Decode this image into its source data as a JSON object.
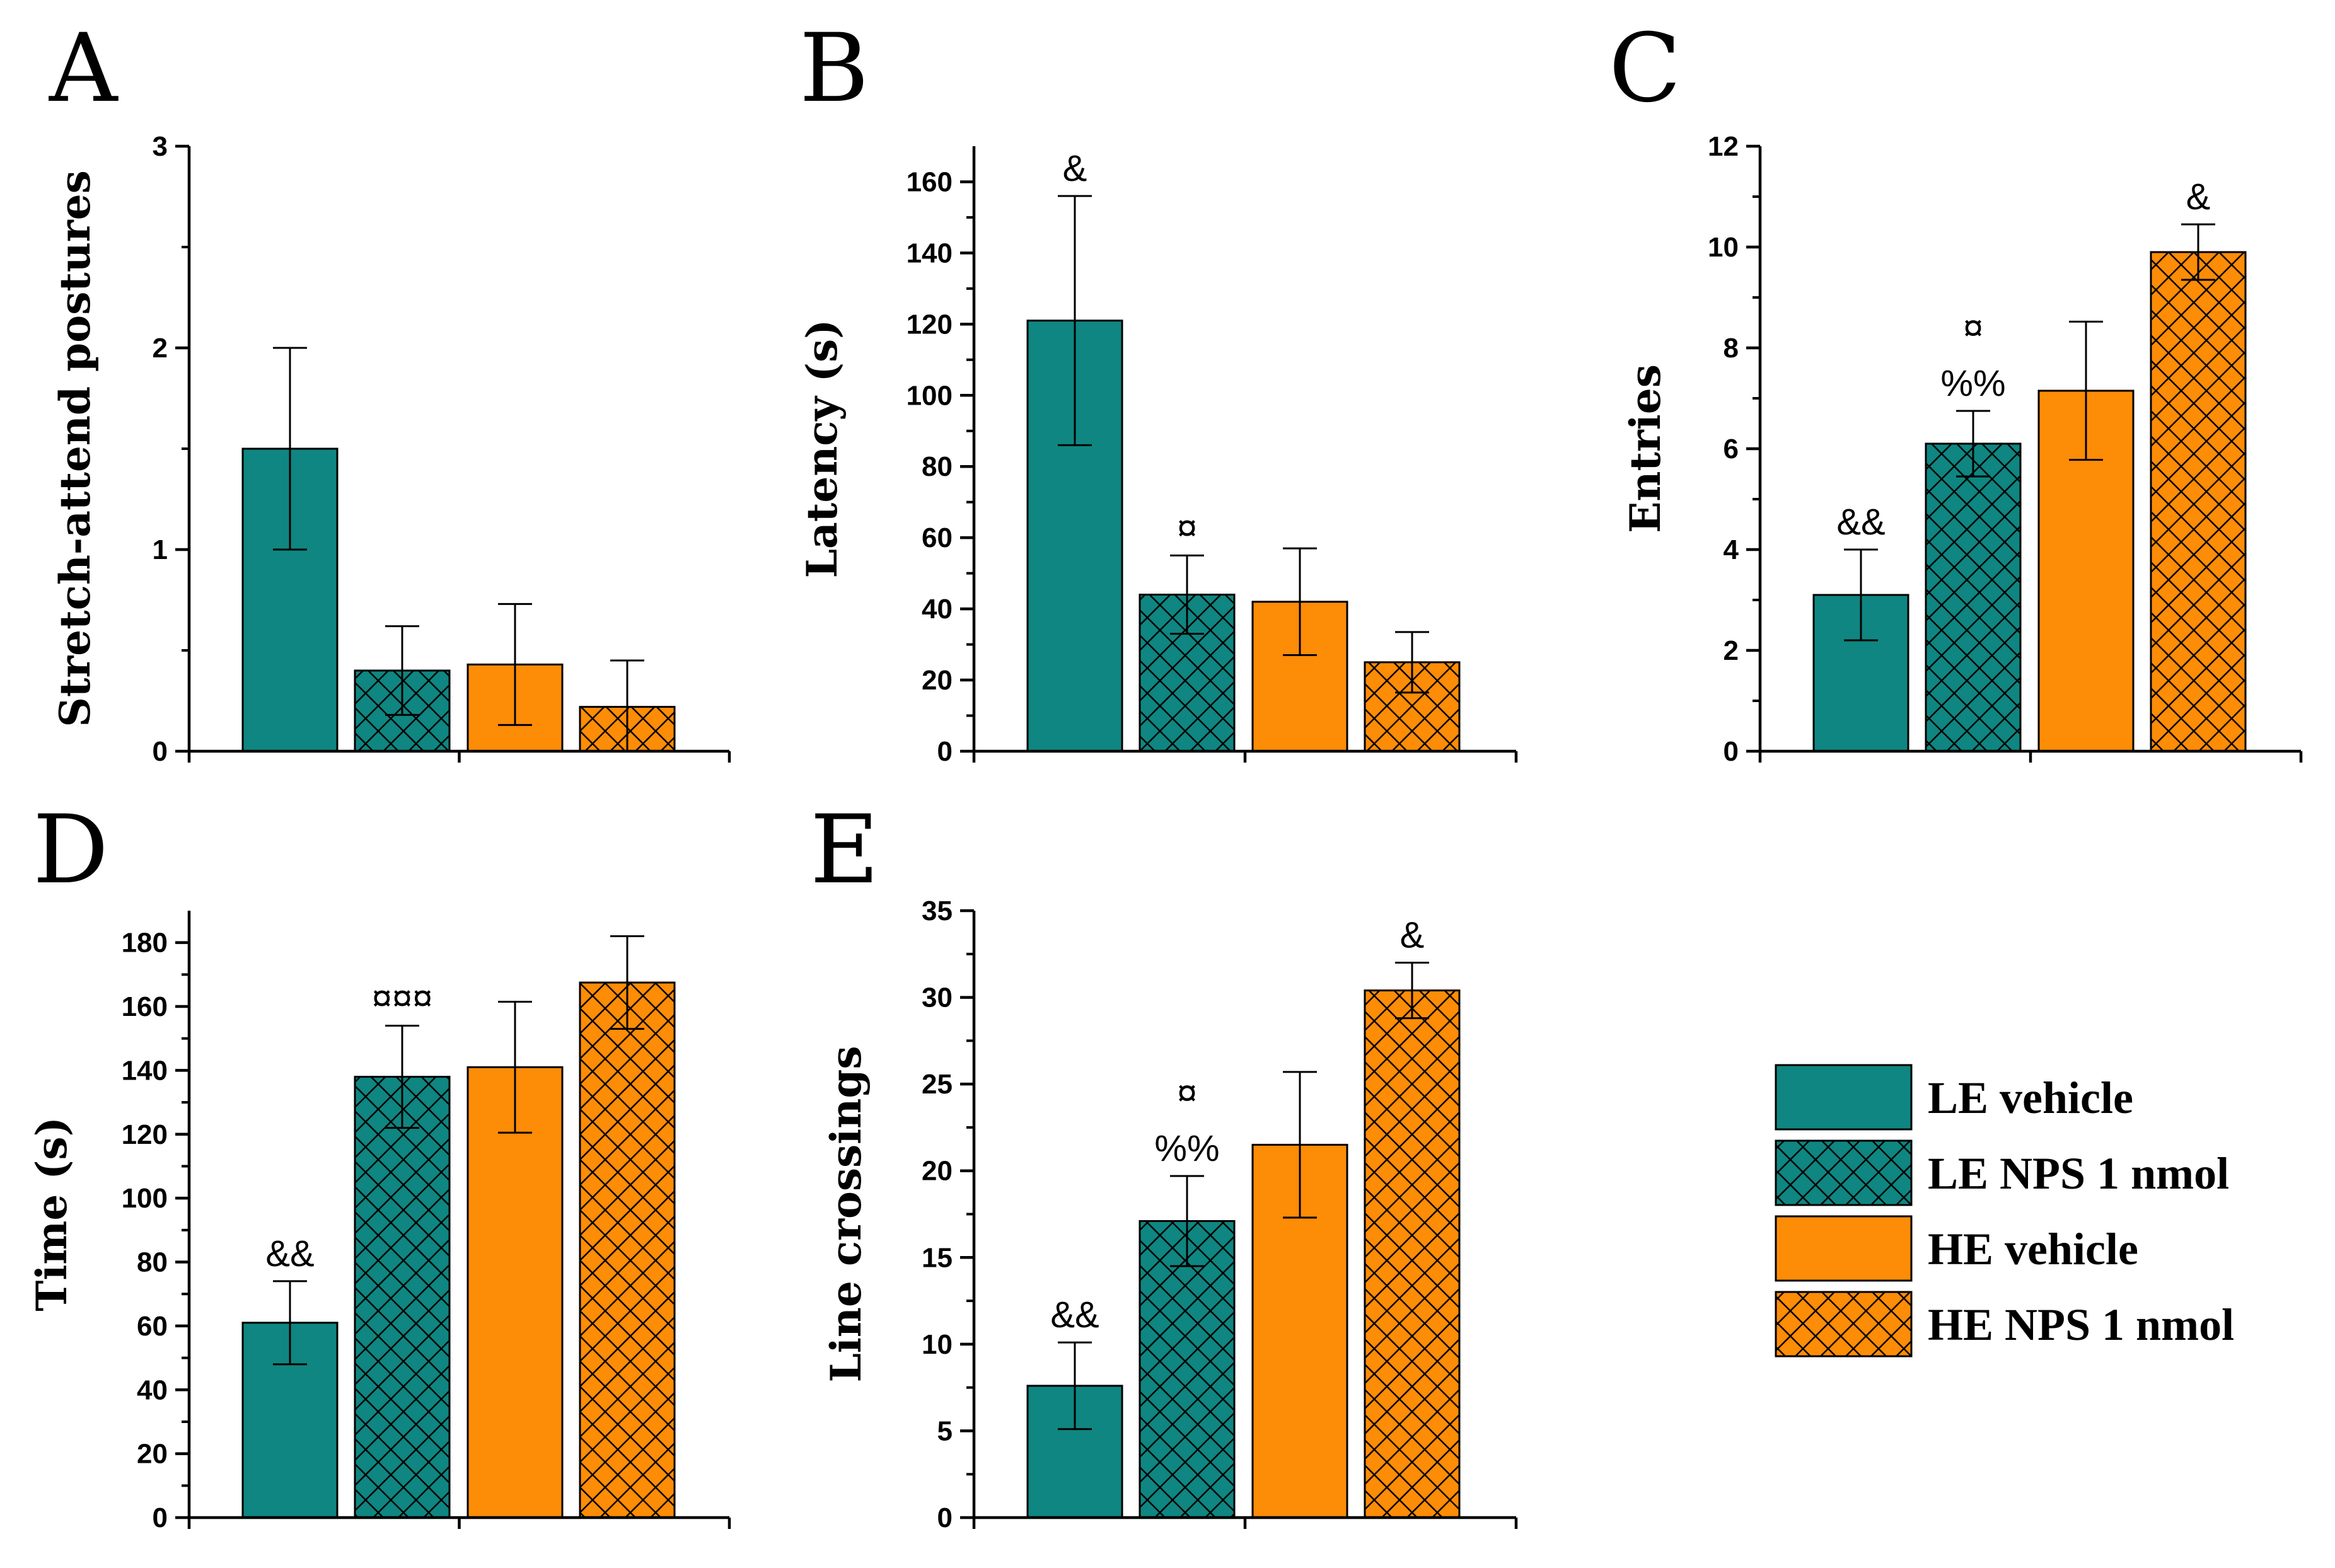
{
  "colors": {
    "teal": "#0f8681",
    "orange": "#fd8c07",
    "axis": "#000000",
    "annotation_red": "#ff0000",
    "annotation_black": "#000000"
  },
  "legend": [
    {
      "label": "LE vehicle",
      "color": "#0f8681",
      "hatch": false
    },
    {
      "label": "LE NPS 1 nmol",
      "color": "#0f8681",
      "hatch": true
    },
    {
      "label": "HE vehicle",
      "color": "#fd8c07",
      "hatch": false
    },
    {
      "label": "HE NPS 1 nmol",
      "color": "#fd8c07",
      "hatch": true
    }
  ],
  "chart_data": [
    {
      "panel": "A",
      "type": "bar",
      "ylabel": "Stretch-attend postures",
      "ylim": [
        0,
        3
      ],
      "yticks": [
        0,
        1,
        2,
        3
      ],
      "values": [
        1.5,
        0.4,
        0.43,
        0.22
      ],
      "errors": [
        0.5,
        0.22,
        0.3,
        0.23
      ],
      "annotations": []
    },
    {
      "panel": "B",
      "type": "bar",
      "ylabel": "Latency (s)",
      "ylim": [
        0,
        170
      ],
      "yticks": [
        0,
        20,
        40,
        60,
        80,
        100,
        120,
        140,
        160
      ],
      "values": [
        121,
        44,
        42,
        25
      ],
      "errors": [
        35,
        11,
        15,
        8.5
      ],
      "annotations": [
        {
          "bar": 0,
          "lines": [
            {
              "text": "&",
              "color": "black"
            }
          ]
        },
        {
          "bar": 1,
          "lines": [
            {
              "text": "¤",
              "color": "red"
            }
          ]
        }
      ]
    },
    {
      "panel": "C",
      "type": "bar",
      "ylabel": "Entries",
      "ylim": [
        0,
        12
      ],
      "yticks": [
        0,
        2,
        4,
        6,
        8,
        10,
        12
      ],
      "values": [
        3.1,
        6.1,
        7.15,
        9.9
      ],
      "errors": [
        0.9,
        0.65,
        1.37,
        0.55
      ],
      "annotations": [
        {
          "bar": 0,
          "lines": [
            {
              "text": "&&",
              "color": "black"
            }
          ]
        },
        {
          "bar": 1,
          "lines": [
            {
              "text": "%%",
              "color": "black"
            },
            {
              "text": "¤",
              "color": "red"
            }
          ]
        },
        {
          "bar": 3,
          "lines": [
            {
              "text": "&",
              "color": "red"
            }
          ]
        }
      ]
    },
    {
      "panel": "D",
      "type": "bar",
      "ylabel": "Time (s)",
      "ylim": [
        0,
        190
      ],
      "yticks": [
        0,
        20,
        40,
        60,
        80,
        100,
        120,
        140,
        160,
        180
      ],
      "values": [
        61,
        138,
        141,
        167.5
      ],
      "errors": [
        13,
        16,
        20.5,
        14.5
      ],
      "annotations": [
        {
          "bar": 0,
          "lines": [
            {
              "text": "&&",
              "color": "black"
            }
          ]
        },
        {
          "bar": 1,
          "lines": [
            {
              "text": "¤¤¤",
              "color": "red"
            }
          ]
        }
      ]
    },
    {
      "panel": "E",
      "type": "bar",
      "ylabel": "Line crossings",
      "ylim": [
        0,
        35
      ],
      "yticks": [
        0,
        5,
        10,
        15,
        20,
        25,
        30,
        35
      ],
      "values": [
        7.6,
        17.1,
        21.5,
        30.4
      ],
      "errors": [
        2.5,
        2.6,
        4.2,
        1.6
      ],
      "annotations": [
        {
          "bar": 0,
          "lines": [
            {
              "text": "&&",
              "color": "black"
            }
          ]
        },
        {
          "bar": 1,
          "lines": [
            {
              "text": "%%",
              "color": "black"
            },
            {
              "text": "¤",
              "color": "red"
            }
          ]
        },
        {
          "bar": 3,
          "lines": [
            {
              "text": "&",
              "color": "red"
            }
          ]
        }
      ]
    }
  ]
}
